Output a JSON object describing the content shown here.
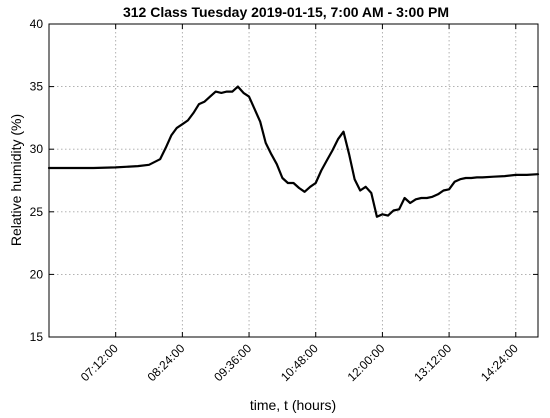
{
  "chart_data": {
    "type": "line",
    "title": "312 Class Tuesday 2019-01-15, 7:00 AM - 3:00 PM",
    "xlabel": "time, t (hours)",
    "ylabel": "Relative humidity (%)",
    "xlim": [
      "06:00:00",
      "14:48:00"
    ],
    "ylim": [
      15,
      40
    ],
    "yticks": [
      15,
      20,
      25,
      30,
      35,
      40
    ],
    "xticks": [
      "07:12:00",
      "08:24:00",
      "09:36:00",
      "10:48:00",
      "12:00:00",
      "13:12:00",
      "14:24:00"
    ],
    "grid": true,
    "series": [
      {
        "color": "#000000",
        "x": [
          "06:00:00",
          "06:48:00",
          "07:12:00",
          "07:36:00",
          "07:48:00",
          "08:00:00",
          "08:06:00",
          "08:12:00",
          "08:18:00",
          "08:24:00",
          "08:30:00",
          "08:36:00",
          "08:42:00",
          "08:48:00",
          "08:54:00",
          "09:00:00",
          "09:06:00",
          "09:12:00",
          "09:18:00",
          "09:24:00",
          "09:30:00",
          "09:36:00",
          "09:42:00",
          "09:48:00",
          "09:54:00",
          "10:00:00",
          "10:06:00",
          "10:12:00",
          "10:18:00",
          "10:24:00",
          "10:30:00",
          "10:36:00",
          "10:42:00",
          "10:48:00",
          "10:54:00",
          "11:00:00",
          "11:06:00",
          "11:12:00",
          "11:18:00",
          "11:24:00",
          "11:30:00",
          "11:36:00",
          "11:42:00",
          "11:48:00",
          "11:54:00",
          "12:00:00",
          "12:06:00",
          "12:12:00",
          "12:18:00",
          "12:24:00",
          "12:30:00",
          "12:36:00",
          "12:42:00",
          "12:48:00",
          "12:54:00",
          "13:00:00",
          "13:06:00",
          "13:12:00",
          "13:18:00",
          "13:24:00",
          "13:30:00",
          "13:36:00",
          "13:42:00",
          "13:48:00",
          "14:00:00",
          "14:12:00",
          "14:24:00",
          "14:36:00",
          "14:48:00"
        ],
        "y": [
          28.5,
          28.5,
          28.55,
          28.65,
          28.75,
          29.2,
          30.1,
          31.1,
          31.7,
          32.0,
          32.3,
          32.9,
          33.6,
          33.8,
          34.2,
          34.6,
          34.5,
          34.6,
          34.6,
          35.0,
          34.5,
          34.2,
          33.2,
          32.2,
          30.5,
          29.6,
          28.8,
          27.7,
          27.3,
          27.3,
          26.9,
          26.6,
          27.0,
          27.3,
          28.3,
          29.1,
          29.9,
          30.8,
          31.4,
          29.6,
          27.6,
          26.7,
          27.0,
          26.5,
          24.6,
          24.8,
          24.7,
          25.1,
          25.2,
          26.1,
          25.7,
          26.0,
          26.1,
          26.1,
          26.2,
          26.4,
          26.7,
          26.8,
          27.4,
          27.6,
          27.7,
          27.7,
          27.75,
          27.75,
          27.8,
          27.85,
          27.95,
          27.95,
          28.0
        ]
      }
    ]
  }
}
